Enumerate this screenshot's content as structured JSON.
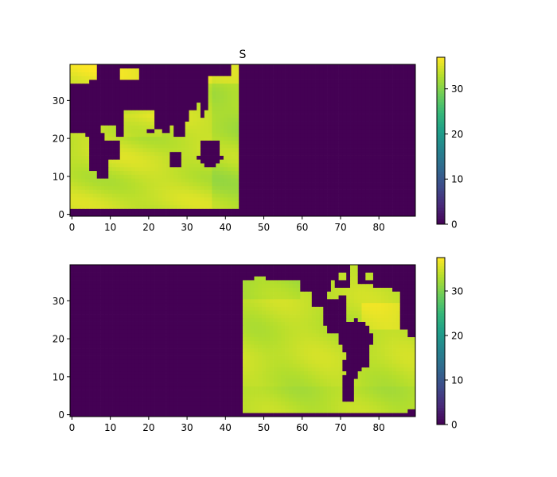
{
  "figure": {
    "title": "S"
  },
  "chart_data": [
    {
      "type": "heatmap",
      "title": "S",
      "grid_shape": [
        40,
        90
      ],
      "xlim": [
        -0.5,
        89.5
      ],
      "ylim": [
        -0.5,
        39.5
      ],
      "xticks": [
        0,
        10,
        20,
        30,
        40,
        50,
        60,
        70,
        80
      ],
      "yticks": [
        0,
        10,
        20,
        30
      ],
      "colorbar": {
        "range": [
          0,
          37
        ],
        "ticks": [
          0,
          10,
          20,
          30
        ],
        "colormap": "viridis"
      },
      "ocean_column_range": [
        0,
        44
      ],
      "land_mask_value": 0,
      "typical_ocean_value": 34.5,
      "grid": false
    },
    {
      "type": "heatmap",
      "title": "",
      "grid_shape": [
        40,
        90
      ],
      "xlim": [
        -0.5,
        89.5
      ],
      "ylim": [
        -0.5,
        39.5
      ],
      "xticks": [
        0,
        10,
        20,
        30,
        40,
        50,
        60,
        70,
        80
      ],
      "yticks": [
        0,
        10,
        20,
        30
      ],
      "colorbar": {
        "range": [
          0,
          37.5
        ],
        "ticks": [
          0,
          10,
          20,
          30
        ],
        "colormap": "viridis"
      },
      "ocean_column_range": [
        45,
        89
      ],
      "land_mask_value": 0,
      "typical_ocean_value": 34.5,
      "grid": false
    }
  ]
}
